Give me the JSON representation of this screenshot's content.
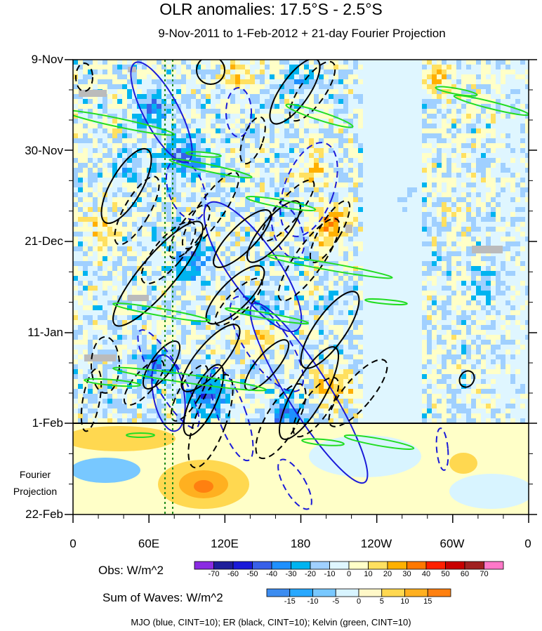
{
  "title": "OLR anomalies: 17.5°S - 2.5°S",
  "subtitle": "9-Nov-2011 to 1-Feb-2012 + 21-day Fourier Projection",
  "chart_data": {
    "type": "heatmap",
    "y_tick_labels": [
      "9-Nov",
      "30-Nov",
      "21-Dec",
      "11-Jan",
      "1-Feb",
      "22-Feb"
    ],
    "x_tick_labels": [
      "0",
      "60E",
      "120E",
      "180",
      "120W",
      "60W",
      "0"
    ],
    "projection_label": "Fourier Projection",
    "observed_end": "1-Feb",
    "obs_colorbar": {
      "label": "Obs: W/m^2",
      "levels": [
        "-70",
        "-60",
        "-50",
        "-40",
        "-30",
        "-20",
        "-10",
        "0",
        "10",
        "20",
        "30",
        "40",
        "50",
        "60",
        "70"
      ],
      "colors": [
        "#8a2be2",
        "#1e1e9a",
        "#1a1ad8",
        "#3860e8",
        "#1e90ff",
        "#00b4f0",
        "#a0d0ff",
        "#dff6ff",
        "#ffffc8",
        "#ffe060",
        "#ffb000",
        "#ff7800",
        "#ff2000",
        "#c80000",
        "#a02020",
        "#ff78c8"
      ]
    },
    "sum_colorbar": {
      "label": "Sum of Waves: W/m^2",
      "levels": [
        "-15",
        "-10",
        "-5",
        "0",
        "5",
        "10",
        "15"
      ],
      "colors": [
        "#3c8cf0",
        "#28a8ff",
        "#78c8ff",
        "#d8f4ff",
        "#fff8c8",
        "#ffd850",
        "#ffb020",
        "#ff8010"
      ]
    },
    "contour_legend": [
      {
        "name": "MJO",
        "color": "#1a1ad8"
      },
      {
        "name": "ER",
        "color": "#000000"
      },
      {
        "name": "Kelvin",
        "color": "#22dd22"
      }
    ]
  },
  "footer": "MJO (blue, CINT=10); ER (black, CINT=10); Kelvin (green, CINT=10)"
}
